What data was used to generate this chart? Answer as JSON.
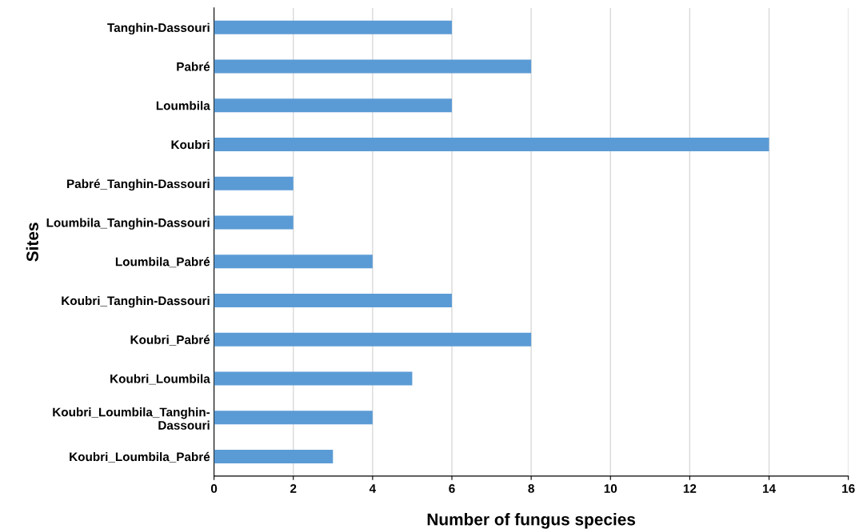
{
  "chart_data": {
    "type": "bar",
    "orientation": "horizontal",
    "xlabel": "Number of fungus species",
    "ylabel": "Sites",
    "categories": [
      "Tanghin-Dassouri",
      "Pabré",
      "Loumbila",
      "Koubri",
      "Pabré_Tanghin-Dassouri",
      "Loumbila_Tanghin-Dassouri",
      "Loumbila_Pabré",
      "Koubri_Tanghin-Dassouri",
      "Koubri_Pabré",
      "Koubri_Loumbila",
      "Koubri_Loumbila_Tanghin-Dassouri",
      "Koubri_Loumbila_Pabré"
    ],
    "values": [
      6,
      8,
      6,
      14,
      2,
      2,
      4,
      6,
      8,
      5,
      4,
      3
    ],
    "color": "#5b9bd5",
    "xlim": [
      0,
      16
    ],
    "xticks": [
      0,
      2,
      4,
      6,
      8,
      10,
      12,
      14,
      16
    ],
    "grid": "x",
    "legend": false
  }
}
